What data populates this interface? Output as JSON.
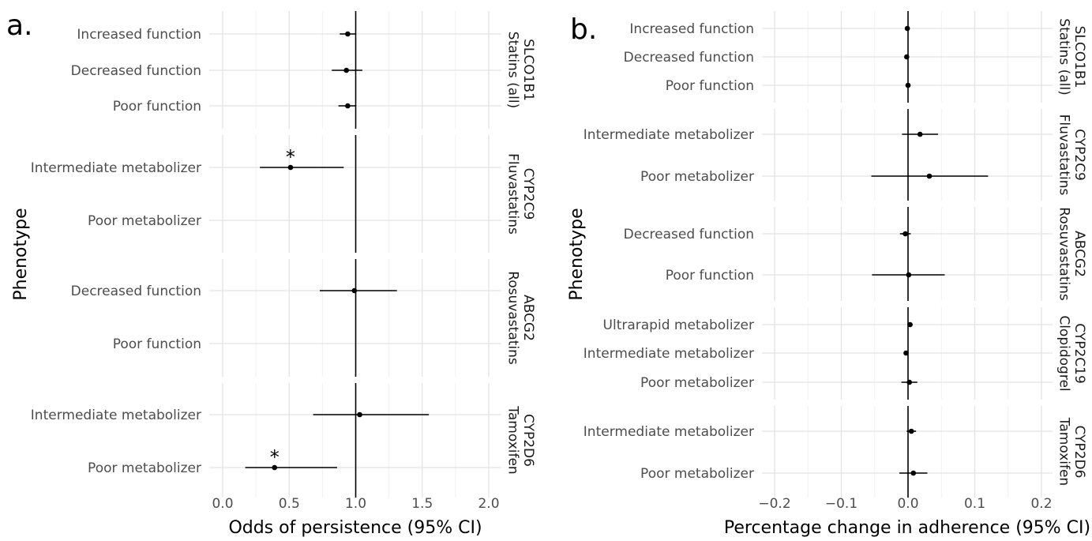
{
  "chart_data": [
    {
      "type": "scatter",
      "panel_label": "a.",
      "xlabel": "Odds of persistence (95% CI)",
      "ylabel": "Phenotype",
      "xlim": [
        -0.05,
        2.08
      ],
      "xticks": [
        "0.0",
        "0.5",
        "1.0",
        "1.5",
        "2.0"
      ],
      "reference_line": 1.0,
      "grid": true,
      "facets": [
        {
          "strip_lines": [
            "SLCO1B1",
            "Statins (all)"
          ],
          "rows": [
            {
              "label": "Increased function",
              "estimate": 0.94,
              "lo": 0.88,
              "hi": 1.0
            },
            {
              "label": "Decreased function",
              "estimate": 0.93,
              "lo": 0.82,
              "hi": 1.05
            },
            {
              "label": "Poor function",
              "estimate": 0.94,
              "lo": 0.87,
              "hi": 1.0
            }
          ]
        },
        {
          "strip_lines": [
            "CYP2C9",
            "Fluvastatins"
          ],
          "rows": [
            {
              "label": "Intermediate metabolizer",
              "estimate": 0.51,
              "lo": 0.28,
              "hi": 0.91,
              "significant": "*"
            },
            {
              "label": "Poor metabolizer"
            }
          ]
        },
        {
          "strip_lines": [
            "ABCG2",
            "Rosuvastatins"
          ],
          "rows": [
            {
              "label": "Decreased function",
              "estimate": 0.99,
              "lo": 0.73,
              "hi": 1.31
            },
            {
              "label": "Poor function"
            }
          ]
        },
        {
          "strip_lines": [
            "CYP2D6",
            "Tamoxifen"
          ],
          "rows": [
            {
              "label": "Intermediate metabolizer",
              "estimate": 1.03,
              "lo": 0.68,
              "hi": 1.55
            },
            {
              "label": "Poor metabolizer",
              "estimate": 0.39,
              "lo": 0.17,
              "hi": 0.86,
              "significant": "*"
            }
          ]
        }
      ]
    },
    {
      "type": "scatter",
      "panel_label": "b.",
      "xlabel": "Percentage change in adherence (95% CI)",
      "ylabel": "Phenotype",
      "xlim": [
        -0.228,
        0.228
      ],
      "xticks": [
        "−0.2",
        "−0.1",
        "0.0",
        "0.1",
        "0.2"
      ],
      "reference_line": 0.0,
      "grid": true,
      "facets": [
        {
          "strip_lines": [
            "SLCO1B1",
            "Statins (all)"
          ],
          "rows": [
            {
              "label": "Increased function",
              "estimate": -0.001,
              "lo": -0.003,
              "hi": 0.001
            },
            {
              "label": "Decreased function",
              "estimate": -0.002,
              "lo": -0.004,
              "hi": 0.0
            },
            {
              "label": "Poor function",
              "estimate": 0.0,
              "lo": -0.002,
              "hi": 0.002
            }
          ]
        },
        {
          "strip_lines": [
            "CYP2C9",
            "Fluvastatins"
          ],
          "rows": [
            {
              "label": "Intermediate metabolizer",
              "estimate": 0.018,
              "lo": -0.009,
              "hi": 0.045
            },
            {
              "label": "Poor metabolizer",
              "estimate": 0.032,
              "lo": -0.055,
              "hi": 0.12
            }
          ]
        },
        {
          "strip_lines": [
            "ABCG2",
            "Rosuvastatins"
          ],
          "rows": [
            {
              "label": "Decreased function",
              "estimate": -0.004,
              "lo": -0.012,
              "hi": 0.004
            },
            {
              "label": "Poor function",
              "estimate": 0.001,
              "lo": -0.054,
              "hi": 0.055
            }
          ]
        },
        {
          "strip_lines": [
            "CYP2C19",
            "Clopidogrel"
          ],
          "rows": [
            {
              "label": "Ultrarapid metabolizer",
              "estimate": 0.003,
              "lo": -0.001,
              "hi": 0.007
            },
            {
              "label": "Intermediate metabolizer",
              "estimate": -0.003,
              "lo": -0.006,
              "hi": 0.0
            },
            {
              "label": "Poor metabolizer",
              "estimate": 0.002,
              "lo": -0.01,
              "hi": 0.014
            }
          ]
        },
        {
          "strip_lines": [
            "CYP2D6",
            "Tamoxifen"
          ],
          "rows": [
            {
              "label": "Intermediate metabolizer",
              "estimate": 0.005,
              "lo": -0.002,
              "hi": 0.012
            },
            {
              "label": "Poor metabolizer",
              "estimate": 0.008,
              "lo": -0.013,
              "hi": 0.029
            }
          ]
        }
      ]
    }
  ]
}
